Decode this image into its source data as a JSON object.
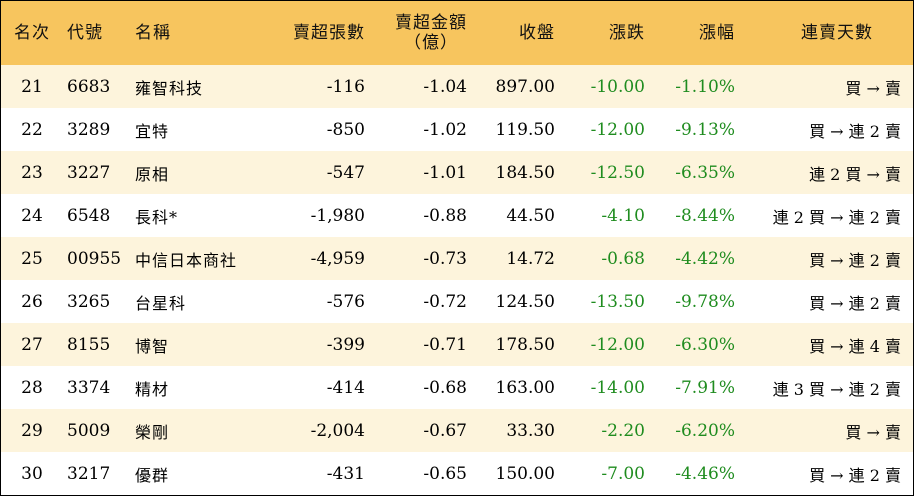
{
  "headers": {
    "rank": "名次",
    "code": "代號",
    "name": "名稱",
    "oversold_shares": "賣超張數",
    "oversold_amount_line1": "賣超金額",
    "oversold_amount_line2": "（億）",
    "close": "收盤",
    "change": "漲跌",
    "change_pct": "漲幅",
    "consecutive": "連賣天數"
  },
  "rows": [
    {
      "rank": "21",
      "code": "6683",
      "name": "雍智科技",
      "shares": "-116",
      "amount": "-1.04",
      "close": "897.00",
      "change": "-10.00",
      "pct": "-1.10%",
      "trend": "買 → 賣"
    },
    {
      "rank": "22",
      "code": "3289",
      "name": "宜特",
      "shares": "-850",
      "amount": "-1.02",
      "close": "119.50",
      "change": "-12.00",
      "pct": "-9.13%",
      "trend": "買 → 連 2 賣"
    },
    {
      "rank": "23",
      "code": "3227",
      "name": "原相",
      "shares": "-547",
      "amount": "-1.01",
      "close": "184.50",
      "change": "-12.50",
      "pct": "-6.35%",
      "trend": "連 2 買 → 賣"
    },
    {
      "rank": "24",
      "code": "6548",
      "name": "長科*",
      "shares": "-1,980",
      "amount": "-0.88",
      "close": "44.50",
      "change": "-4.10",
      "pct": "-8.44%",
      "trend": "連 2 買 → 連 2 賣"
    },
    {
      "rank": "25",
      "code": "00955",
      "name": "中信日本商社",
      "shares": "-4,959",
      "amount": "-0.73",
      "close": "14.72",
      "change": "-0.68",
      "pct": "-4.42%",
      "trend": "買 → 連 2 賣"
    },
    {
      "rank": "26",
      "code": "3265",
      "name": "台星科",
      "shares": "-576",
      "amount": "-0.72",
      "close": "124.50",
      "change": "-13.50",
      "pct": "-9.78%",
      "trend": "買 → 連 2 賣"
    },
    {
      "rank": "27",
      "code": "8155",
      "name": "博智",
      "shares": "-399",
      "amount": "-0.71",
      "close": "178.50",
      "change": "-12.00",
      "pct": "-6.30%",
      "trend": "買 → 連 4 賣"
    },
    {
      "rank": "28",
      "code": "3374",
      "name": "精材",
      "shares": "-414",
      "amount": "-0.68",
      "close": "163.00",
      "change": "-14.00",
      "pct": "-7.91%",
      "trend": "連 3 買 → 連 2 賣"
    },
    {
      "rank": "29",
      "code": "5009",
      "name": "榮剛",
      "shares": "-2,004",
      "amount": "-0.67",
      "close": "33.30",
      "change": "-2.20",
      "pct": "-6.20%",
      "trend": "買 → 賣"
    },
    {
      "rank": "30",
      "code": "3217",
      "name": "優群",
      "shares": "-431",
      "amount": "-0.65",
      "close": "150.00",
      "change": "-7.00",
      "pct": "-4.46%",
      "trend": "買 → 連 2 賣"
    }
  ],
  "colors": {
    "header_bg": "#f7c55e",
    "stripe_bg": "#fdf4dc",
    "negative_change": "#1f8c1f"
  }
}
